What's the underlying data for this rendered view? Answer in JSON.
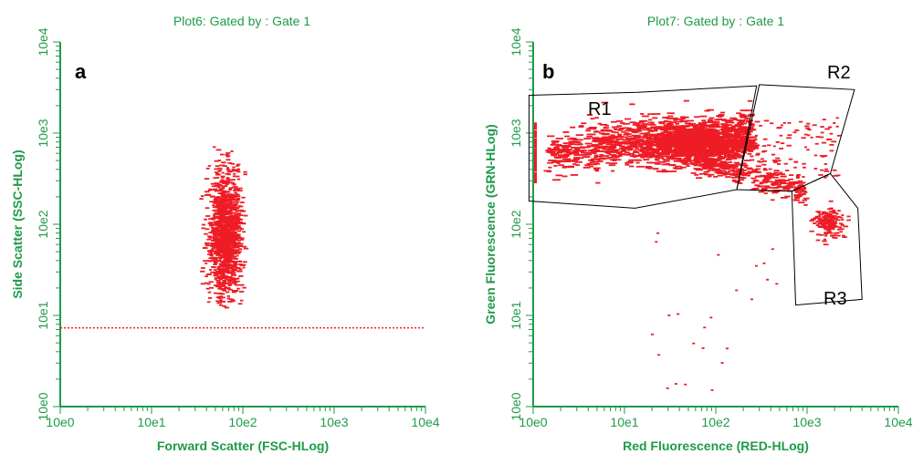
{
  "colors": {
    "axis": "#1f9a4a",
    "points": "#ee1c25",
    "gate": "#000000"
  },
  "chart_data": [
    {
      "type": "scatter",
      "title": "Plot6:  Gated by : Gate 1",
      "panel_label": "a",
      "xlabel": "Forward Scatter (FSC-HLog)",
      "ylabel": "Side Scatter (SSC-HLog)",
      "x_scale": "log",
      "y_scale": "log",
      "xlim": [
        1,
        10000
      ],
      "ylim": [
        1,
        10000
      ],
      "x_ticks": [
        "10e0",
        "10e1",
        "10e2",
        "10e3",
        "10e4"
      ],
      "y_ticks": [
        "10e0",
        "10e1",
        "10e2",
        "10e3",
        "10e4"
      ],
      "threshold_line_y": 7.3,
      "cluster": {
        "x_center": 65,
        "y_center": 75,
        "x_range": [
          35,
          110
        ],
        "y_range": [
          12,
          850
        ]
      }
    },
    {
      "type": "scatter",
      "title": "Plot7:  Gated by : Gate 1",
      "panel_label": "b",
      "xlabel": "Red Fluorescence (RED-HLog)",
      "ylabel": "Green Fluorescence (GRN-HLog)",
      "x_scale": "log",
      "y_scale": "log",
      "xlim": [
        1,
        10000
      ],
      "ylim": [
        1,
        10000
      ],
      "x_ticks": [
        "10e0",
        "10e1",
        "10e2",
        "10e3",
        "10e4"
      ],
      "y_ticks": [
        "10e0",
        "10e1",
        "10e2",
        "10e3",
        "10e4"
      ],
      "regions": [
        {
          "name": "R1",
          "vertices": [
            [
              0.9,
              2600
            ],
            [
              14,
              2800
            ],
            [
              280,
              3300
            ],
            [
              170,
              240
            ],
            [
              13,
              150
            ],
            [
              0.9,
              180
            ]
          ]
        },
        {
          "name": "R2",
          "vertices": [
            [
              300,
              3400
            ],
            [
              3300,
              3000
            ],
            [
              1800,
              360
            ],
            [
              680,
              230
            ],
            [
              170,
              240
            ]
          ]
        },
        {
          "name": "R3",
          "vertices": [
            [
              1800,
              360
            ],
            [
              3600,
              150
            ],
            [
              4000,
              15
            ],
            [
              750,
              13
            ],
            [
              680,
              230
            ]
          ]
        }
      ]
    }
  ]
}
